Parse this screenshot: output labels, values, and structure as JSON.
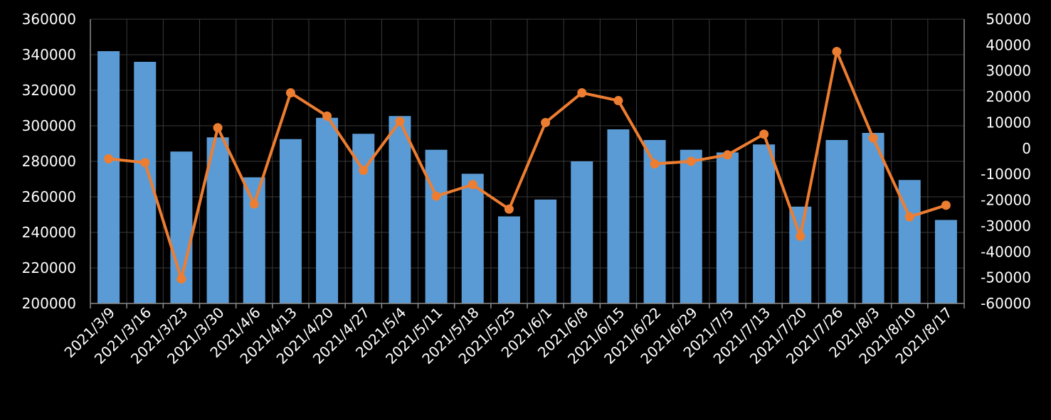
{
  "chart_data": {
    "type": "bar",
    "categories": [
      "2021/3/9",
      "2021/3/16",
      "2021/3/23",
      "2021/3/30",
      "2021/4/6",
      "2021/4/13",
      "2021/4/20",
      "2021/4/27",
      "2021/5/4",
      "2021/5/11",
      "2021/5/18",
      "2021/5/25",
      "2021/6/1",
      "2021/6/8",
      "2021/6/15",
      "2021/6/22",
      "2021/6/29",
      "2021/7/5",
      "2021/7/13",
      "2021/7/20",
      "2021/7/26",
      "2021/8/3",
      "2021/8/10",
      "2021/8/17"
    ],
    "series": [
      {
        "type": "bar",
        "axis": "left",
        "color": "#5b9bd5",
        "values": [
          342000,
          336000,
          285500,
          293500,
          271000,
          292500,
          304500,
          295500,
          305500,
          286500,
          273000,
          249000,
          258500,
          280000,
          298000,
          292000,
          286500,
          285000,
          289500,
          254500,
          292000,
          296000,
          269500,
          247000
        ]
      },
      {
        "type": "line",
        "axis": "right",
        "color": "#ed7d31",
        "values": [
          -4000,
          -5500,
          -50500,
          8000,
          -21500,
          21500,
          12500,
          -8500,
          10500,
          -18500,
          -14000,
          -23500,
          10000,
          21500,
          18500,
          -6000,
          -5000,
          -2500,
          5500,
          -34000,
          37500,
          4000,
          -26500,
          -22000
        ]
      }
    ],
    "y_left": {
      "range": [
        200000,
        360000
      ],
      "ticks": [
        "360000",
        "340000",
        "320000",
        "300000",
        "280000",
        "260000",
        "240000",
        "220000",
        "200000"
      ]
    },
    "y_right": {
      "range": [
        -60000,
        50000
      ],
      "ticks": [
        "50000",
        "40000",
        "30000",
        "20000",
        "10000",
        "0",
        "-10000",
        "-20000",
        "-30000",
        "-40000",
        "-50000",
        "-60000"
      ]
    },
    "grid": true,
    "title": "",
    "xlabel": "",
    "ylabel": ""
  }
}
